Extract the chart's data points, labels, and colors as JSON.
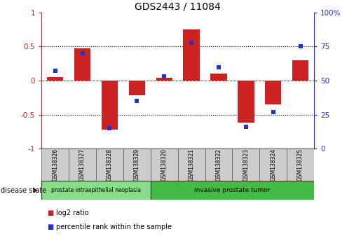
{
  "title": "GDS2443 / 11084",
  "samples": [
    "GSM138326",
    "GSM138327",
    "GSM138328",
    "GSM138329",
    "GSM138320",
    "GSM138321",
    "GSM138322",
    "GSM138323",
    "GSM138324",
    "GSM138325"
  ],
  "log2_ratio": [
    0.05,
    0.47,
    -0.72,
    -0.22,
    0.04,
    0.75,
    0.1,
    -0.62,
    -0.35,
    0.3
  ],
  "percentile_rank": [
    57,
    70,
    15,
    35,
    53,
    78,
    60,
    16,
    27,
    75
  ],
  "ylim_left": [
    -1,
    1
  ],
  "ylim_right": [
    0,
    100
  ],
  "yticks_left": [
    -1,
    -0.5,
    0,
    0.5,
    1
  ],
  "yticks_right": [
    0,
    25,
    50,
    75,
    100
  ],
  "bar_color": "#cc2222",
  "dot_color": "#2233cc",
  "group1_label": "prostate intraepithelial neoplasia",
  "group2_label": "invasive prostate tumor",
  "group1_indices": [
    0,
    1,
    2,
    3
  ],
  "group2_indices": [
    4,
    5,
    6,
    7,
    8,
    9
  ],
  "group1_color": "#88dd88",
  "group2_color": "#44bb44",
  "disease_state_label": "disease state",
  "legend_bar_label": "log2 ratio",
  "legend_dot_label": "percentile rank within the sample",
  "bar_width": 0.6,
  "background_color": "#ffffff"
}
